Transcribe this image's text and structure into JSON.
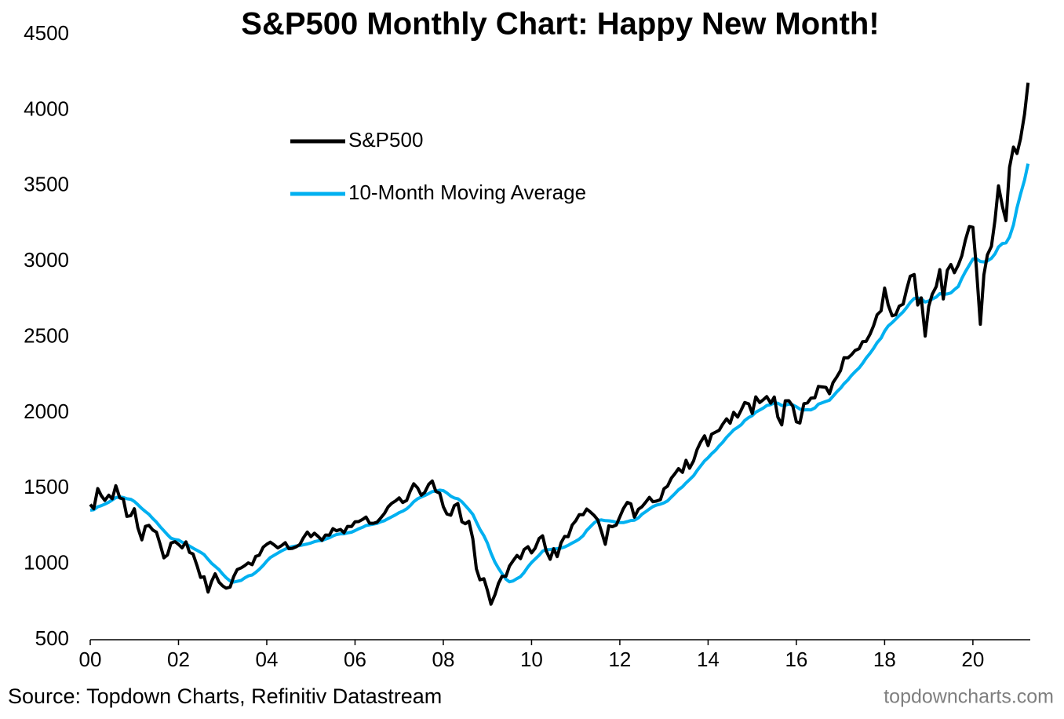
{
  "chart_data": {
    "type": "line",
    "title": "S&P500 Monthly Chart: Happy New Month!",
    "source": "Source: Topdown Charts, Refinitiv Datastream",
    "watermark": "topdowncharts.com",
    "xlim": [
      2000,
      2021.3
    ],
    "xticks": [
      {
        "value": 2000,
        "label": "00"
      },
      {
        "value": 2002,
        "label": "02"
      },
      {
        "value": 2004,
        "label": "04"
      },
      {
        "value": 2006,
        "label": "06"
      },
      {
        "value": 2008,
        "label": "08"
      },
      {
        "value": 2010,
        "label": "10"
      },
      {
        "value": 2012,
        "label": "12"
      },
      {
        "value": 2014,
        "label": "14"
      },
      {
        "value": 2016,
        "label": "16"
      },
      {
        "value": 2018,
        "label": "18"
      },
      {
        "value": 2020,
        "label": "20"
      }
    ],
    "ylim": [
      500,
      4500
    ],
    "yticks": [
      500,
      1000,
      1500,
      2000,
      2500,
      3000,
      3500,
      4000,
      4500
    ],
    "grid": false,
    "x": [
      2000,
      2000.08,
      2000.17,
      2000.25,
      2000.33,
      2000.42,
      2000.5,
      2000.58,
      2000.67,
      2000.75,
      2000.83,
      2000.92,
      2001,
      2001.08,
      2001.17,
      2001.25,
      2001.33,
      2001.42,
      2001.5,
      2001.58,
      2001.67,
      2001.75,
      2001.83,
      2001.92,
      2002,
      2002.08,
      2002.17,
      2002.25,
      2002.33,
      2002.42,
      2002.5,
      2002.58,
      2002.67,
      2002.75,
      2002.83,
      2002.92,
      2003,
      2003.08,
      2003.17,
      2003.25,
      2003.33,
      2003.42,
      2003.5,
      2003.58,
      2003.67,
      2003.75,
      2003.83,
      2003.92,
      2004,
      2004.08,
      2004.17,
      2004.25,
      2004.33,
      2004.42,
      2004.5,
      2004.58,
      2004.67,
      2004.75,
      2004.83,
      2004.92,
      2005,
      2005.08,
      2005.17,
      2005.25,
      2005.33,
      2005.42,
      2005.5,
      2005.58,
      2005.67,
      2005.75,
      2005.83,
      2005.92,
      2006,
      2006.08,
      2006.17,
      2006.25,
      2006.33,
      2006.42,
      2006.5,
      2006.58,
      2006.67,
      2006.75,
      2006.83,
      2006.92,
      2007,
      2007.08,
      2007.17,
      2007.25,
      2007.33,
      2007.42,
      2007.5,
      2007.58,
      2007.67,
      2007.75,
      2007.83,
      2007.92,
      2008,
      2008.08,
      2008.17,
      2008.25,
      2008.33,
      2008.42,
      2008.5,
      2008.58,
      2008.67,
      2008.75,
      2008.83,
      2008.92,
      2009,
      2009.08,
      2009.17,
      2009.25,
      2009.33,
      2009.42,
      2009.5,
      2009.58,
      2009.67,
      2009.75,
      2009.83,
      2009.92,
      2010,
      2010.08,
      2010.17,
      2010.25,
      2010.33,
      2010.42,
      2010.5,
      2010.58,
      2010.67,
      2010.75,
      2010.83,
      2010.92,
      2011,
      2011.08,
      2011.17,
      2011.25,
      2011.33,
      2011.42,
      2011.5,
      2011.58,
      2011.67,
      2011.75,
      2011.83,
      2011.92,
      2012,
      2012.08,
      2012.17,
      2012.25,
      2012.33,
      2012.42,
      2012.5,
      2012.58,
      2012.67,
      2012.75,
      2012.83,
      2012.92,
      2013,
      2013.08,
      2013.17,
      2013.25,
      2013.33,
      2013.42,
      2013.5,
      2013.58,
      2013.67,
      2013.75,
      2013.83,
      2013.92,
      2014,
      2014.08,
      2014.17,
      2014.25,
      2014.33,
      2014.42,
      2014.5,
      2014.58,
      2014.67,
      2014.75,
      2014.83,
      2014.92,
      2015,
      2015.08,
      2015.17,
      2015.25,
      2015.33,
      2015.42,
      2015.5,
      2015.58,
      2015.67,
      2015.75,
      2015.83,
      2015.92,
      2016,
      2016.08,
      2016.17,
      2016.25,
      2016.33,
      2016.42,
      2016.5,
      2016.58,
      2016.67,
      2016.75,
      2016.83,
      2016.92,
      2017,
      2017.08,
      2017.17,
      2017.25,
      2017.33,
      2017.42,
      2017.5,
      2017.58,
      2017.67,
      2017.75,
      2017.83,
      2017.92,
      2018,
      2018.08,
      2018.17,
      2018.25,
      2018.33,
      2018.42,
      2018.5,
      2018.58,
      2018.67,
      2018.75,
      2018.83,
      2018.92,
      2019,
      2019.08,
      2019.17,
      2019.25,
      2019.33,
      2019.42,
      2019.5,
      2019.58,
      2019.67,
      2019.75,
      2019.83,
      2019.92,
      2020,
      2020.08,
      2020.17,
      2020.25,
      2020.33,
      2020.42,
      2020.5,
      2020.58,
      2020.67,
      2020.75,
      2020.83,
      2020.92,
      2021,
      2021.08,
      2021.17,
      2021.25
    ],
    "series": [
      {
        "name": "S&P500",
        "color": "#000000",
        "values": [
          1394,
          1366,
          1499,
          1452,
          1421,
          1455,
          1431,
          1518,
          1437,
          1429,
          1315,
          1320,
          1366,
          1240,
          1160,
          1249,
          1256,
          1224,
          1211,
          1134,
          1041,
          1060,
          1139,
          1148,
          1130,
          1107,
          1147,
          1077,
          1067,
          990,
          912,
          916,
          815,
          886,
          936,
          880,
          856,
          841,
          848,
          917,
          964,
          975,
          990,
          1008,
          996,
          1051,
          1058,
          1112,
          1131,
          1145,
          1126,
          1107,
          1121,
          1141,
          1102,
          1104,
          1115,
          1130,
          1174,
          1212,
          1181,
          1204,
          1181,
          1157,
          1192,
          1191,
          1234,
          1220,
          1229,
          1207,
          1249,
          1248,
          1280,
          1281,
          1295,
          1311,
          1270,
          1270,
          1277,
          1304,
          1336,
          1378,
          1401,
          1418,
          1438,
          1407,
          1421,
          1482,
          1531,
          1503,
          1455,
          1474,
          1527,
          1549,
          1481,
          1468,
          1379,
          1331,
          1323,
          1386,
          1400,
          1280,
          1267,
          1283,
          1166,
          969,
          896,
          903,
          826,
          735,
          798,
          873,
          919,
          919,
          987,
          1021,
          1057,
          1036,
          1096,
          1115,
          1074,
          1104,
          1169,
          1187,
          1089,
          1031,
          1102,
          1049,
          1141,
          1183,
          1181,
          1258,
          1286,
          1327,
          1326,
          1364,
          1345,
          1321,
          1292,
          1219,
          1131,
          1253,
          1247,
          1258,
          1312,
          1366,
          1408,
          1398,
          1310,
          1362,
          1379,
          1407,
          1441,
          1412,
          1416,
          1426,
          1498,
          1515,
          1569,
          1598,
          1631,
          1606,
          1686,
          1633,
          1682,
          1757,
          1806,
          1848,
          1783,
          1859,
          1872,
          1884,
          1924,
          1960,
          1931,
          2003,
          1972,
          2018,
          2068,
          2059,
          1995,
          2105,
          2068,
          2086,
          2107,
          2063,
          2104,
          1972,
          1920,
          2079,
          2080,
          2044,
          1940,
          1932,
          2060,
          2065,
          2097,
          2099,
          2174,
          2171,
          2168,
          2126,
          2199,
          2239,
          2279,
          2364,
          2363,
          2384,
          2412,
          2423,
          2470,
          2472,
          2519,
          2575,
          2648,
          2674,
          2824,
          2714,
          2641,
          2648,
          2705,
          2718,
          2816,
          2902,
          2914,
          2712,
          2760,
          2507,
          2704,
          2784,
          2834,
          2946,
          2752,
          2942,
          2980,
          2926,
          2977,
          3038,
          3141,
          3231,
          3226,
          2954,
          2585,
          2912,
          3044,
          3100,
          3271,
          3500,
          3363,
          3270,
          3622,
          3756,
          3714,
          3811,
          3973,
          4181
        ]
      },
      {
        "name": "10-Month Moving Average",
        "color": "#00b0f0",
        "values": [
          1356,
          1359,
          1379,
          1386,
          1396,
          1409,
          1424,
          1439,
          1444,
          1440,
          1432,
          1428,
          1414,
          1393,
          1367,
          1347,
          1329,
          1300,
          1277,
          1248,
          1220,
          1194,
          1171,
          1162,
          1159,
          1145,
          1134,
          1119,
          1105,
          1091,
          1078,
          1063,
          1031,
          1005,
          985,
          963,
          934,
          910,
          888,
          881,
          886,
          892,
          909,
          922,
          928,
          945,
          965,
          992,
          1020,
          1043,
          1059,
          1072,
          1086,
          1099,
          1109,
          1115,
          1120,
          1122,
          1127,
          1133,
          1139,
          1148,
          1154,
          1156,
          1165,
          1174,
          1186,
          1195,
          1200,
          1200,
          1206,
          1211,
          1221,
          1233,
          1243,
          1255,
          1259,
          1264,
          1269,
          1279,
          1287,
          1300,
          1312,
          1326,
          1340,
          1350,
          1365,
          1386,
          1412,
          1432,
          1443,
          1453,
          1466,
          1479,
          1483,
          1489,
          1485,
          1470,
          1449,
          1437,
          1432,
          1412,
          1386,
          1360,
          1328,
          1278,
          1230,
          1187,
          1138,
          1073,
          1012,
          972,
          937,
          900,
          883,
          888,
          904,
          917,
          944,
          982,
          1010,
          1033,
          1058,
          1085,
          1095,
          1096,
          1100,
          1102,
          1106,
          1113,
          1124,
          1139,
          1151,
          1165,
          1188,
          1222,
          1246,
          1273,
          1288,
          1292,
          1287,
          1286,
          1283,
          1276,
          1274,
          1274,
          1281,
          1288,
          1290,
          1305,
          1329,
          1345,
          1364,
          1380,
          1390,
          1396,
          1405,
          1417,
          1443,
          1466,
          1491,
          1511,
          1536,
          1558,
          1584,
          1618,
          1648,
          1682,
          1703,
          1729,
          1753,
          1781,
          1805,
          1838,
          1862,
          1887,
          1904,
          1921,
          1949,
          1969,
          1981,
          2004,
          2018,
          2031,
          2048,
          2054,
          2067,
          2063,
          2048,
          2050,
          2058,
          2052,
          2040,
          2024,
          2019,
          2020,
          2019,
          2032,
          2057,
          2066,
          2075,
          2083,
          2109,
          2140,
          2162,
          2192,
          2218,
          2247,
          2271,
          2296,
          2326,
          2361,
          2393,
          2426,
          2463,
          2494,
          2540,
          2573,
          2596,
          2619,
          2642,
          2667,
          2696,
          2729,
          2756,
          2759,
          2753,
          2732,
          2739,
          2752,
          2765,
          2788,
          2782,
          2786,
          2792,
          2814,
          2835,
          2888,
          2932,
          2977,
          3016,
          3017,
          3000,
          2997,
          3003,
          3021,
          3050,
          3096,
          3119,
          3123,
          3162,
          3242,
          3355,
          3445,
          3538,
          3646
        ]
      }
    ]
  }
}
